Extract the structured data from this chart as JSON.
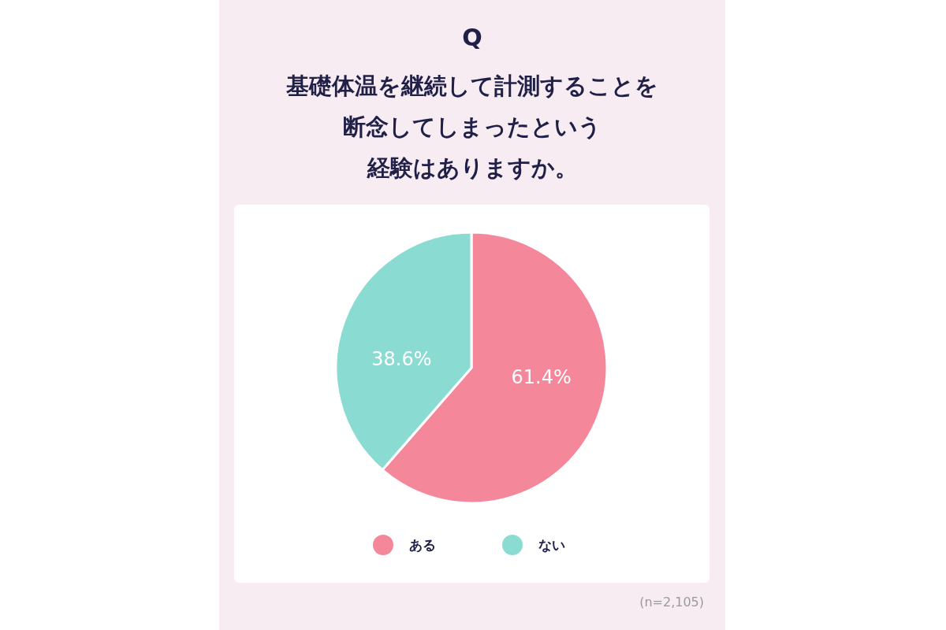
{
  "chart_data": {
    "type": "pie",
    "title": "基礎体温を継続して計測することを断念してしまったという経験はありますか。",
    "annotations": [
      "Q",
      "(n=2,105)"
    ],
    "categories": [
      "ある",
      "ない"
    ],
    "values": [
      61.4,
      38.6
    ],
    "value_labels": [
      "61.4%",
      "38.6%"
    ],
    "colors": [
      "#f4879a",
      "#8adcd3"
    ],
    "legend": "bottom"
  }
}
